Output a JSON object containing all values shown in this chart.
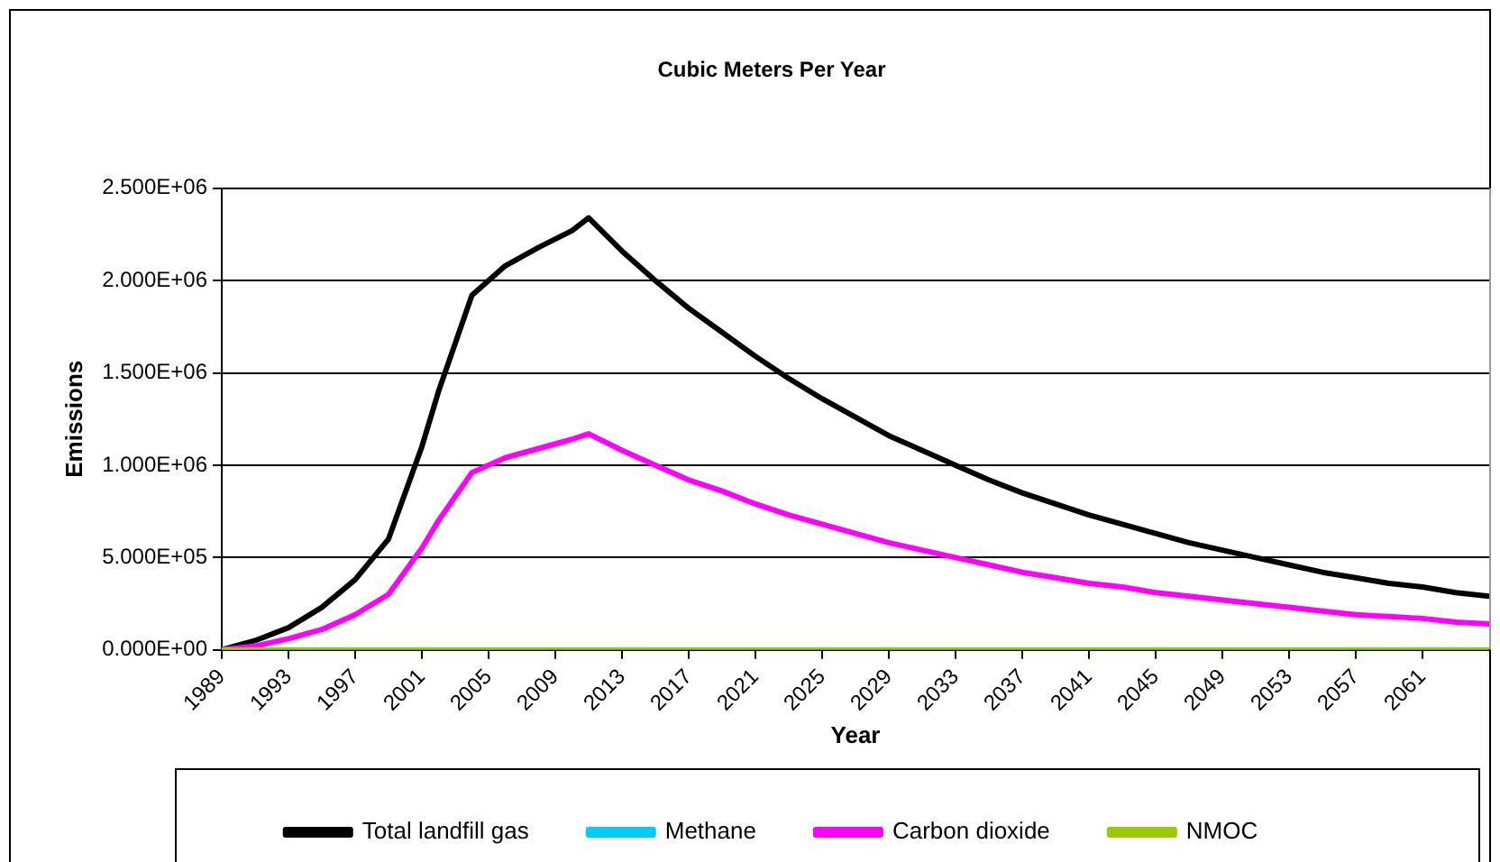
{
  "chart_data": {
    "type": "line",
    "title": "Cubic Meters Per Year",
    "xlabel": "Year",
    "ylabel": "Emissions",
    "x": [
      1989,
      1991,
      1993,
      1995,
      1997,
      1999,
      2001,
      2002,
      2004,
      2006,
      2008,
      2010,
      2011,
      2013,
      2015,
      2017,
      2019,
      2021,
      2023,
      2025,
      2027,
      2029,
      2031,
      2033,
      2035,
      2037,
      2039,
      2041,
      2043,
      2045,
      2047,
      2049,
      2051,
      2053,
      2055,
      2057,
      2059,
      2061,
      2063,
      2065
    ],
    "series": [
      {
        "name": "Total landfill gas",
        "color": "#000000",
        "values": [
          0,
          50000,
          120000,
          230000,
          380000,
          600000,
          1100000,
          1400000,
          1920000,
          2080000,
          2180000,
          2270000,
          2340000,
          2160000,
          2000000,
          1850000,
          1720000,
          1590000,
          1470000,
          1360000,
          1260000,
          1160000,
          1080000,
          1000000,
          920000,
          850000,
          790000,
          730000,
          680000,
          630000,
          580000,
          540000,
          500000,
          460000,
          420000,
          390000,
          360000,
          340000,
          310000,
          290000
        ]
      },
      {
        "name": "Methane",
        "color": "#00ccff",
        "values": [
          null,
          null,
          null,
          null,
          null,
          null,
          null,
          null,
          null,
          null,
          null,
          null,
          null,
          null,
          null,
          null,
          null,
          null,
          null,
          null,
          null,
          null,
          null,
          null,
          null,
          null,
          null,
          null,
          null,
          null,
          null,
          null,
          null,
          null,
          null,
          null,
          null,
          null,
          null,
          null
        ]
      },
      {
        "name": "Carbon dioxide",
        "color": "#ff00ff",
        "values": [
          0,
          20000,
          60000,
          110000,
          190000,
          300000,
          550000,
          700000,
          960000,
          1040000,
          1090000,
          1140000,
          1170000,
          1080000,
          1000000,
          920000,
          860000,
          790000,
          730000,
          680000,
          630000,
          580000,
          540000,
          500000,
          460000,
          420000,
          390000,
          360000,
          340000,
          310000,
          290000,
          270000,
          250000,
          230000,
          210000,
          190000,
          180000,
          170000,
          150000,
          140000
        ]
      },
      {
        "name": "NMOC",
        "color": "#99cc00",
        "values": [
          0,
          0,
          0,
          0,
          0,
          0,
          0,
          0,
          0,
          0,
          0,
          0,
          0,
          0,
          0,
          0,
          0,
          0,
          0,
          0,
          0,
          0,
          0,
          0,
          0,
          0,
          0,
          0,
          0,
          0,
          0,
          0,
          0,
          0,
          0,
          0,
          0,
          0,
          0,
          0
        ]
      }
    ],
    "xlim": [
      1989,
      2065
    ],
    "xticks": [
      1989,
      1993,
      1997,
      2001,
      2005,
      2009,
      2013,
      2017,
      2021,
      2025,
      2029,
      2033,
      2037,
      2041,
      2045,
      2049,
      2053,
      2057,
      2061
    ],
    "ylim": [
      0,
      2500000
    ],
    "yticks": [
      {
        "value": 0,
        "label": "0.000E+00"
      },
      {
        "value": 500000,
        "label": "5.000E+05"
      },
      {
        "value": 1000000,
        "label": "1.000E+06"
      },
      {
        "value": 1500000,
        "label": "1.500E+06"
      },
      {
        "value": 2000000,
        "label": "2.000E+06"
      },
      {
        "value": 2500000,
        "label": "2.500E+06"
      }
    ],
    "grid": "y",
    "legend": "bottom",
    "marker": "none",
    "line_style": "solid"
  }
}
